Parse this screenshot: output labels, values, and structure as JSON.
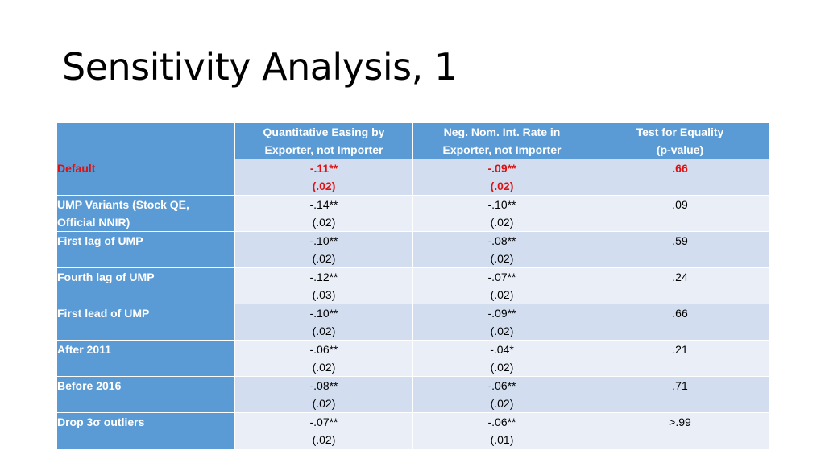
{
  "slide": {
    "title": "Sensitivity Analysis, 1"
  },
  "table": {
    "headers": [
      [
        "",
        ""
      ],
      [
        "Quantitative Easing by",
        "Exporter, not Importer"
      ],
      [
        "Neg. Nom. Int. Rate in",
        "Exporter, not Importer"
      ],
      [
        "Test for Equality",
        "(p-value)"
      ]
    ],
    "rows": [
      {
        "label": [
          "Default",
          ""
        ],
        "qe": [
          "-.11**",
          "(.02)"
        ],
        "nnir": [
          "-.09**",
          "(.02)"
        ],
        "test": [
          ".66",
          ""
        ]
      },
      {
        "label": [
          "UMP Variants (Stock QE,",
          "Official NNIR)"
        ],
        "qe": [
          "-.14**",
          "(.02)"
        ],
        "nnir": [
          "-.10**",
          "(.02)"
        ],
        "test": [
          ".09",
          ""
        ]
      },
      {
        "label": [
          "First lag of UMP",
          ""
        ],
        "qe": [
          "-.10**",
          "(.02)"
        ],
        "nnir": [
          "-.08**",
          "(.02)"
        ],
        "test": [
          ".59",
          ""
        ]
      },
      {
        "label": [
          "Fourth lag of UMP",
          ""
        ],
        "qe": [
          "-.12**",
          "(.03)"
        ],
        "nnir": [
          "-.07**",
          "(.02)"
        ],
        "test": [
          ".24",
          ""
        ]
      },
      {
        "label": [
          "First lead of UMP",
          ""
        ],
        "qe": [
          "-.10**",
          "(.02)"
        ],
        "nnir": [
          "-.09**",
          "(.02)"
        ],
        "test": [
          ".66",
          ""
        ]
      },
      {
        "label": [
          "After 2011",
          ""
        ],
        "qe": [
          "-.06**",
          "(.02)"
        ],
        "nnir": [
          "-.04*",
          "(.02)"
        ],
        "test": [
          ".21",
          ""
        ]
      },
      {
        "label": [
          "Before 2016",
          ""
        ],
        "qe": [
          "-.08**",
          "(.02)"
        ],
        "nnir": [
          "-.06**",
          "(.02)"
        ],
        "test": [
          ".71",
          ""
        ]
      },
      {
        "label": [
          "Drop 3σ outliers",
          ""
        ],
        "qe": [
          "-.07**",
          "(.02)"
        ],
        "nnir": [
          "-.06**",
          "(.01)"
        ],
        "test": [
          ">.99",
          ""
        ]
      }
    ]
  },
  "colors": {
    "header_bg": "#5b9bd5",
    "band_a": "#d2deef",
    "band_b": "#eaeff7",
    "highlight": "#e01010"
  }
}
